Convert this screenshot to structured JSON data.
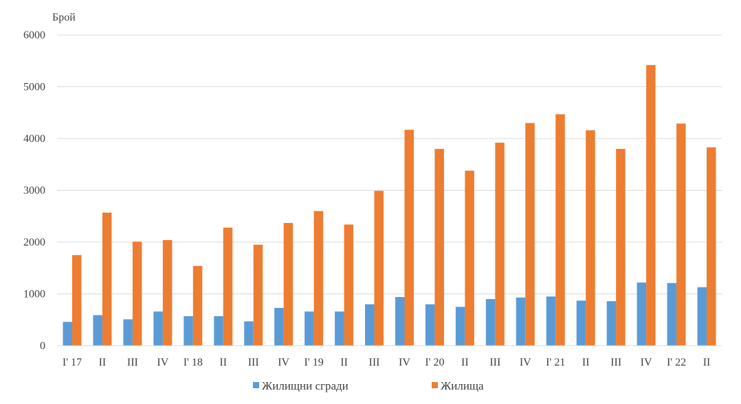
{
  "chart_data": {
    "type": "bar",
    "ylabel": "Брой",
    "ylim": [
      0,
      6000
    ],
    "yticks": [
      0,
      1000,
      2000,
      3000,
      4000,
      5000,
      6000
    ],
    "grid": true,
    "legend_position": "bottom",
    "categories": [
      "I' 17",
      "II",
      "III",
      "IV",
      "I' 18",
      "II",
      "III",
      "IV",
      "I' 19",
      "II",
      "III",
      "IV",
      "I' 20",
      "II",
      "III",
      "IV",
      "I' 21",
      "II",
      "III",
      "IV",
      "I' 22",
      "II"
    ],
    "series": [
      {
        "name": "Жилищни сгради",
        "color": "#5B9BD5",
        "values": [
          460,
          590,
          510,
          660,
          570,
          570,
          470,
          730,
          660,
          660,
          800,
          940,
          800,
          750,
          900,
          930,
          950,
          870,
          860,
          1220,
          1210,
          1130
        ]
      },
      {
        "name": "Жилища",
        "color": "#ED7D31",
        "values": [
          1750,
          2570,
          2010,
          2040,
          1540,
          2280,
          1950,
          2370,
          2600,
          2340,
          2990,
          4170,
          3800,
          3380,
          3920,
          4300,
          4470,
          4160,
          3800,
          5420,
          4290,
          3830
        ]
      }
    ]
  }
}
